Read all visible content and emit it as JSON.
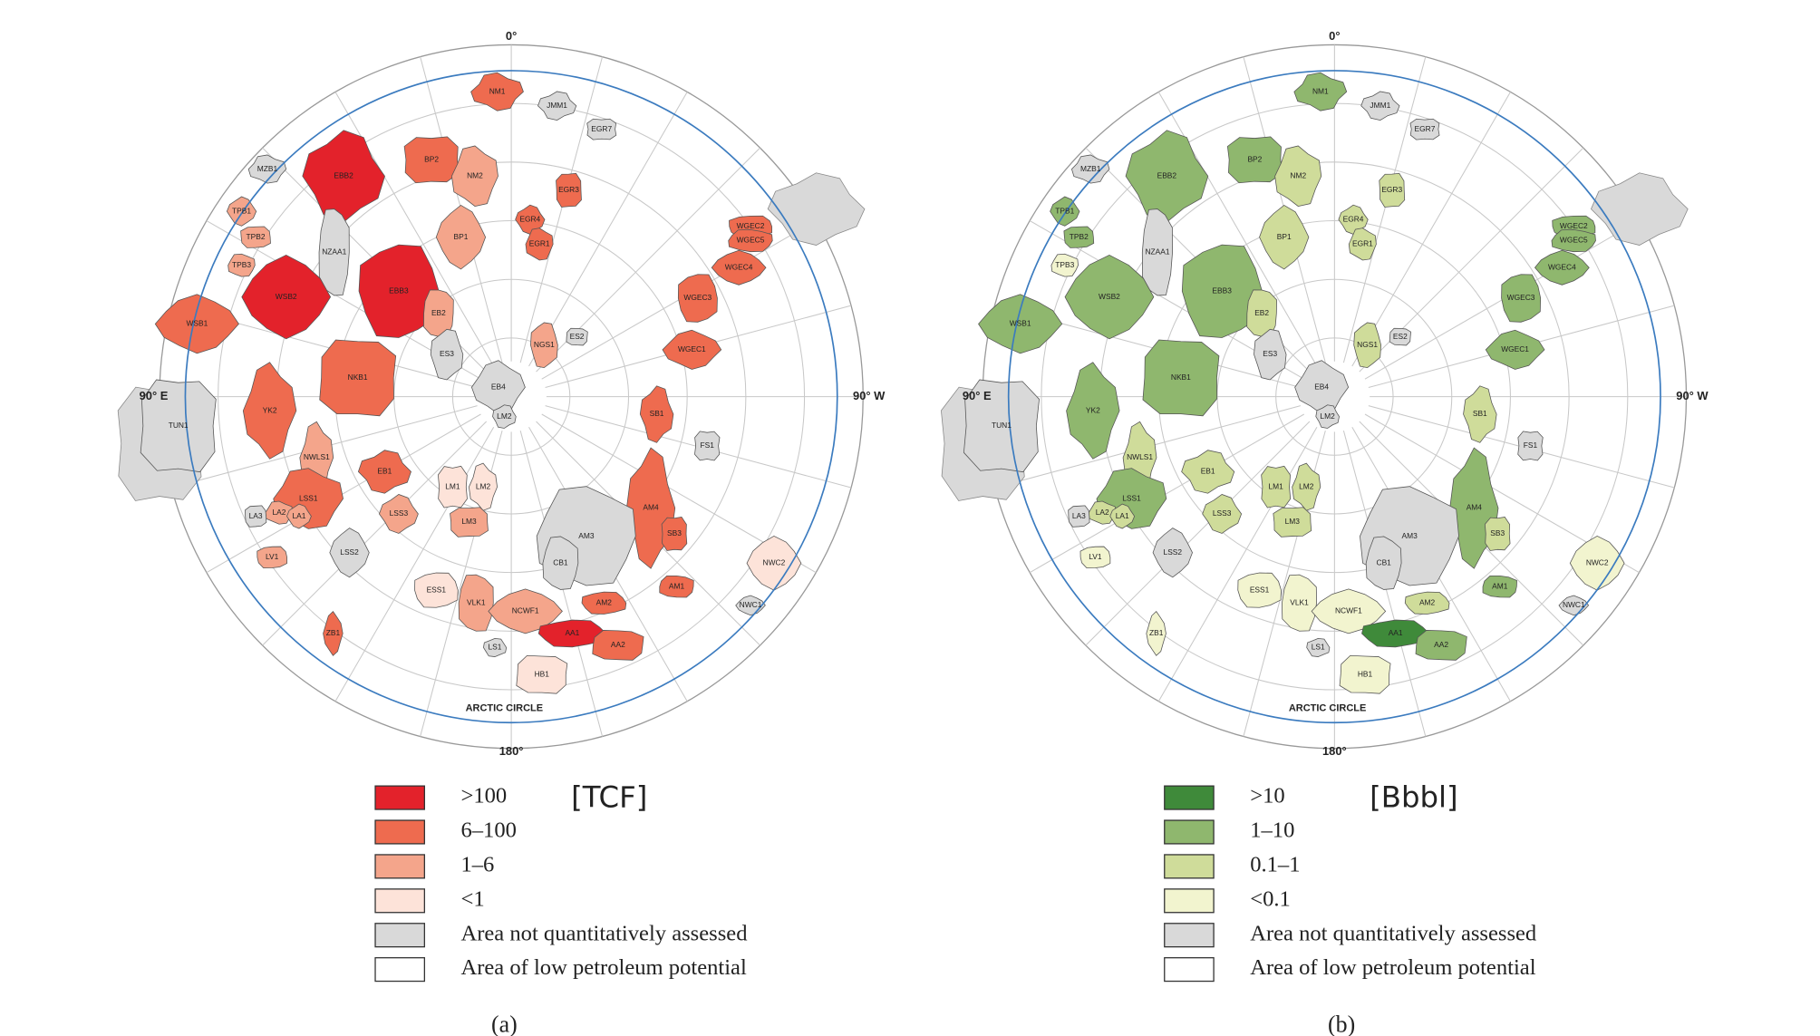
{
  "panels": [
    {
      "caption": "(a)",
      "unit": "[TCF]",
      "map_labels": {
        "top": "0°",
        "bottom": "180°",
        "left": "90° E",
        "right": "90° W",
        "circle": "ARCTIC CIRCLE"
      },
      "legend": [
        {
          "label": ">100",
          "color": "#e3222b"
        },
        {
          "label": "6–100",
          "color": "#ee6b4f"
        },
        {
          "label": "1–6",
          "color": "#f4a58b"
        },
        {
          "label": "<1",
          "color": "#fde3d9"
        },
        {
          "label": "Area not quantitatively assessed",
          "color": "#d9d9d9"
        },
        {
          "label": "Area of low petroleum potential",
          "color": "#ffffff"
        }
      ],
      "regions": [
        {
          "label": "NM1",
          "color": "#ee6b4f"
        },
        {
          "label": "JMM1",
          "color": "#d9d9d9"
        },
        {
          "label": "EGR7",
          "color": "#d9d9d9"
        },
        {
          "label": "MZB1",
          "color": "#d9d9d9"
        },
        {
          "label": "EBB2",
          "color": "#e3222b"
        },
        {
          "label": "BP2",
          "color": "#ee6b4f"
        },
        {
          "label": "NM2",
          "color": "#f4a58b"
        },
        {
          "label": "EGR4",
          "color": "#ee6b4f"
        },
        {
          "label": "EGR3",
          "color": "#ee6b4f"
        },
        {
          "label": "EGR1",
          "color": "#ee6b4f"
        },
        {
          "label": "TPB1",
          "color": "#f4a58b"
        },
        {
          "label": "TPB2",
          "color": "#f4a58b"
        },
        {
          "label": "TPB3",
          "color": "#f4a58b"
        },
        {
          "label": "BP1",
          "color": "#f4a58b"
        },
        {
          "label": "WGEC2",
          "color": "#ee6b4f"
        },
        {
          "label": "WGEC5",
          "color": "#ee6b4f"
        },
        {
          "label": "WGEC4",
          "color": "#ee6b4f"
        },
        {
          "label": "WGEC3",
          "color": "#ee6b4f"
        },
        {
          "label": "NZAA1",
          "color": "#d9d9d9"
        },
        {
          "label": "WSB2",
          "color": "#e3222b"
        },
        {
          "label": "EBB3",
          "color": "#e3222b"
        },
        {
          "label": "EB2",
          "color": "#f4a58b"
        },
        {
          "label": "WSB1",
          "color": "#ee6b4f"
        },
        {
          "label": "NGS1",
          "color": "#f4a58b"
        },
        {
          "label": "ES2",
          "color": "#d9d9d9"
        },
        {
          "label": "WGEC1",
          "color": "#ee6b4f"
        },
        {
          "label": "ES3",
          "color": "#d9d9d9"
        },
        {
          "label": "NKB1",
          "color": "#ee6b4f"
        },
        {
          "label": "EB4",
          "color": "#d9d9d9"
        },
        {
          "label": "LM2",
          "color": "#d9d9d9"
        },
        {
          "label": "TUN1",
          "color": "#d9d9d9"
        },
        {
          "label": "YK2",
          "color": "#ee6b4f"
        },
        {
          "label": "SB1",
          "color": "#ee6b4f"
        },
        {
          "label": "FS1",
          "color": "#d9d9d9"
        },
        {
          "label": "NWLS1",
          "color": "#f4a58b"
        },
        {
          "label": "EB1",
          "color": "#ee6b4f"
        },
        {
          "label": "LM1",
          "color": "#fde3d9"
        },
        {
          "label": "LM2",
          "color": "#fde3d9"
        },
        {
          "label": "AM4",
          "color": "#ee6b4f"
        },
        {
          "label": "SB3",
          "color": "#ee6b4f"
        },
        {
          "label": "LSS1",
          "color": "#ee6b4f"
        },
        {
          "label": "LSS3",
          "color": "#f4a58b"
        },
        {
          "label": "LM3",
          "color": "#f4a58b"
        },
        {
          "label": "LA2",
          "color": "#f4a58b"
        },
        {
          "label": "LA1",
          "color": "#f4a58b"
        },
        {
          "label": "LA3",
          "color": "#d9d9d9"
        },
        {
          "label": "AM3",
          "color": "#d9d9d9"
        },
        {
          "label": "LSS2",
          "color": "#d9d9d9"
        },
        {
          "label": "LV1",
          "color": "#f4a58b"
        },
        {
          "label": "CB1",
          "color": "#d9d9d9"
        },
        {
          "label": "NWC2",
          "color": "#fde3d9"
        },
        {
          "label": "ESS1",
          "color": "#fde3d9"
        },
        {
          "label": "VLK1",
          "color": "#f4a58b"
        },
        {
          "label": "NCWF1",
          "color": "#f4a58b"
        },
        {
          "label": "AM2",
          "color": "#ee6b4f"
        },
        {
          "label": "AM1",
          "color": "#ee6b4f"
        },
        {
          "label": "NWC1",
          "color": "#d9d9d9"
        },
        {
          "label": "AA1",
          "color": "#e3222b"
        },
        {
          "label": "AA2",
          "color": "#ee6b4f"
        },
        {
          "label": "ZB1",
          "color": "#ee6b4f"
        },
        {
          "label": "LS1",
          "color": "#d9d9d9"
        },
        {
          "label": "HB1",
          "color": "#fde3d9"
        }
      ]
    },
    {
      "caption": "(b)",
      "unit": "[Bbbl]",
      "map_labels": {
        "top": "0°",
        "bottom": "180°",
        "left": "90° E",
        "right": "90° W",
        "circle": "ARCTIC CIRCLE"
      },
      "legend": [
        {
          "label": ">10",
          "color": "#3f8a3a"
        },
        {
          "label": "1–10",
          "color": "#8fb76e"
        },
        {
          "label": "0.1–1",
          "color": "#cfdc9a"
        },
        {
          "label": "<0.1",
          "color": "#f2f4cf"
        },
        {
          "label": "Area not quantitatively assessed",
          "color": "#d9d9d9"
        },
        {
          "label": "Area of low petroleum potential",
          "color": "#ffffff"
        }
      ],
      "regions": [
        {
          "label": "NM1",
          "color": "#8fb76e"
        },
        {
          "label": "JMM1",
          "color": "#d9d9d9"
        },
        {
          "label": "EGR7",
          "color": "#d9d9d9"
        },
        {
          "label": "MZB1",
          "color": "#d9d9d9"
        },
        {
          "label": "EBB2",
          "color": "#8fb76e"
        },
        {
          "label": "BP2",
          "color": "#8fb76e"
        },
        {
          "label": "NM2",
          "color": "#cfdc9a"
        },
        {
          "label": "EGR4",
          "color": "#cfdc9a"
        },
        {
          "label": "EGR3",
          "color": "#cfdc9a"
        },
        {
          "label": "EGR1",
          "color": "#cfdc9a"
        },
        {
          "label": "TPB1",
          "color": "#8fb76e"
        },
        {
          "label": "TPB2",
          "color": "#8fb76e"
        },
        {
          "label": "TPB3",
          "color": "#f2f4cf"
        },
        {
          "label": "BP1",
          "color": "#cfdc9a"
        },
        {
          "label": "WGEC2",
          "color": "#8fb76e"
        },
        {
          "label": "WGEC5",
          "color": "#8fb76e"
        },
        {
          "label": "WGEC4",
          "color": "#8fb76e"
        },
        {
          "label": "WGEC3",
          "color": "#8fb76e"
        },
        {
          "label": "NZAA1",
          "color": "#d9d9d9"
        },
        {
          "label": "WSB2",
          "color": "#8fb76e"
        },
        {
          "label": "EBB3",
          "color": "#8fb76e"
        },
        {
          "label": "EB2",
          "color": "#cfdc9a"
        },
        {
          "label": "WSB1",
          "color": "#8fb76e"
        },
        {
          "label": "NGS1",
          "color": "#cfdc9a"
        },
        {
          "label": "ES2",
          "color": "#d9d9d9"
        },
        {
          "label": "WGEC1",
          "color": "#8fb76e"
        },
        {
          "label": "ES3",
          "color": "#d9d9d9"
        },
        {
          "label": "NKB1",
          "color": "#8fb76e"
        },
        {
          "label": "EB4",
          "color": "#d9d9d9"
        },
        {
          "label": "LM2",
          "color": "#d9d9d9"
        },
        {
          "label": "TUN1",
          "color": "#d9d9d9"
        },
        {
          "label": "YK2",
          "color": "#8fb76e"
        },
        {
          "label": "SB1",
          "color": "#cfdc9a"
        },
        {
          "label": "FS1",
          "color": "#d9d9d9"
        },
        {
          "label": "NWLS1",
          "color": "#cfdc9a"
        },
        {
          "label": "EB1",
          "color": "#cfdc9a"
        },
        {
          "label": "LM1",
          "color": "#cfdc9a"
        },
        {
          "label": "LM2",
          "color": "#cfdc9a"
        },
        {
          "label": "AM4",
          "color": "#8fb76e"
        },
        {
          "label": "SB3",
          "color": "#cfdc9a"
        },
        {
          "label": "LSS1",
          "color": "#8fb76e"
        },
        {
          "label": "LSS3",
          "color": "#cfdc9a"
        },
        {
          "label": "LM3",
          "color": "#cfdc9a"
        },
        {
          "label": "LA2",
          "color": "#cfdc9a"
        },
        {
          "label": "LA1",
          "color": "#cfdc9a"
        },
        {
          "label": "LA3",
          "color": "#d9d9d9"
        },
        {
          "label": "AM3",
          "color": "#d9d9d9"
        },
        {
          "label": "LSS2",
          "color": "#d9d9d9"
        },
        {
          "label": "LV1",
          "color": "#f2f4cf"
        },
        {
          "label": "CB1",
          "color": "#d9d9d9"
        },
        {
          "label": "NWC2",
          "color": "#f2f4cf"
        },
        {
          "label": "ESS1",
          "color": "#f2f4cf"
        },
        {
          "label": "VLK1",
          "color": "#f2f4cf"
        },
        {
          "label": "NCWF1",
          "color": "#f2f4cf"
        },
        {
          "label": "AM2",
          "color": "#cfdc9a"
        },
        {
          "label": "AM1",
          "color": "#8fb76e"
        },
        {
          "label": "NWC1",
          "color": "#d9d9d9"
        },
        {
          "label": "AA1",
          "color": "#3f8a3a"
        },
        {
          "label": "AA2",
          "color": "#8fb76e"
        },
        {
          "label": "ZB1",
          "color": "#f2f4cf"
        },
        {
          "label": "LS1",
          "color": "#d9d9d9"
        },
        {
          "label": "HB1",
          "color": "#f2f4cf"
        }
      ]
    }
  ]
}
